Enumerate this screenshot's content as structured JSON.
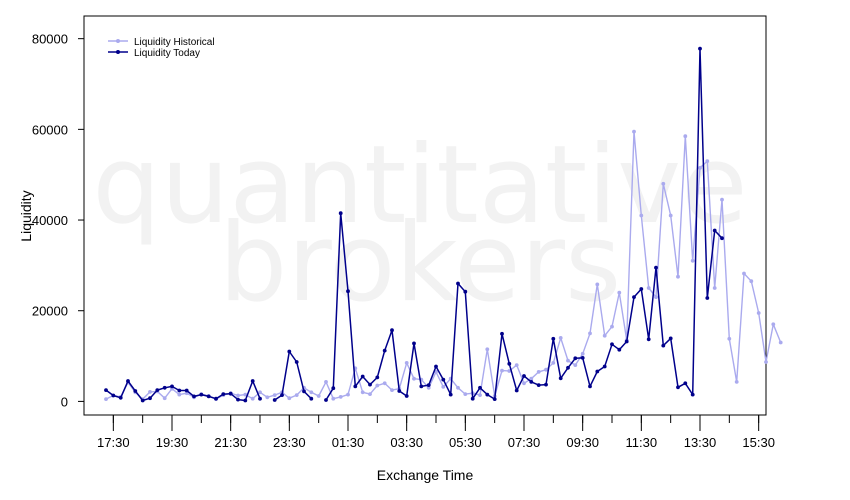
{
  "watermark": [
    "quantitative",
    "brokers"
  ],
  "chart_data": {
    "type": "line",
    "xlabel": "Exchange Time",
    "ylabel": "Liquidity",
    "ylim": [
      -3000,
      85000
    ],
    "y_ticks": [
      0,
      20000,
      40000,
      60000,
      80000
    ],
    "x_ticks": [
      "17:30",
      "19:30",
      "21:30",
      "23:30",
      "01:30",
      "03:30",
      "05:30",
      "07:30",
      "09:30",
      "11:30",
      "13:30",
      "15:30"
    ],
    "x_range_hours": [
      16.5,
      39.75
    ],
    "x_start_clock": "16:30",
    "legend_position": "top-left",
    "series": [
      {
        "name": "Liquidity Historical",
        "color": "#aaaaee",
        "start_time": "17:15",
        "step_minutes": 15,
        "values": [
          500,
          1300,
          1000,
          4200,
          2000,
          500,
          2100,
          2200,
          700,
          2800,
          1500,
          1800,
          900,
          1600,
          1200,
          500,
          1400,
          1800,
          1300,
          1500,
          600,
          2000,
          900,
          1400,
          2000,
          700,
          1400,
          3000,
          2000,
          1200,
          4300,
          600,
          1000,
          1500,
          7300,
          2000,
          1600,
          3500,
          4000,
          2500,
          2800,
          8500,
          5000,
          4800,
          3000,
          6500,
          3200,
          5000,
          3000,
          1600,
          1800,
          1400,
          11500,
          1200,
          6800,
          6700,
          8000,
          4000,
          5000,
          6500,
          7000,
          8500,
          14000,
          9000,
          8000,
          10500,
          15000,
          25800,
          14500,
          16500,
          24000,
          13500,
          59500,
          41000,
          25000,
          23000,
          48000,
          41000,
          27500,
          58500,
          31000,
          51500,
          53000,
          25000,
          44500,
          13800,
          4300,
          28200,
          26500,
          19500,
          8700,
          17000,
          13000
        ]
      },
      {
        "name": "Liquidity Today",
        "color": "#00008b",
        "start_time": "17:15",
        "step_minutes": 15,
        "values": [
          2500,
          1300,
          800,
          4500,
          2300,
          200,
          700,
          2500,
          3000,
          3300,
          2400,
          2400,
          1100,
          1500,
          1100,
          600,
          1600,
          1700,
          400,
          200,
          4500,
          600,
          null,
          300,
          1400,
          11000,
          8700,
          2200,
          600,
          null,
          300,
          2900,
          41500,
          24300,
          3300,
          5500,
          3700,
          5300,
          11200,
          15700,
          2300,
          1200,
          12800,
          3300,
          3600,
          7700,
          4800,
          1500,
          26000,
          24200,
          600,
          3000,
          1500,
          500,
          14900,
          8300,
          2400,
          5600,
          4300,
          3600,
          3700,
          13800,
          5100,
          7400,
          9500,
          9600,
          3300,
          6600,
          7700,
          12600,
          11400,
          13200,
          23000,
          24800,
          13700,
          29500,
          12300,
          13900,
          3100,
          4000,
          1500,
          77800,
          22800,
          37700,
          36000
        ]
      }
    ]
  }
}
